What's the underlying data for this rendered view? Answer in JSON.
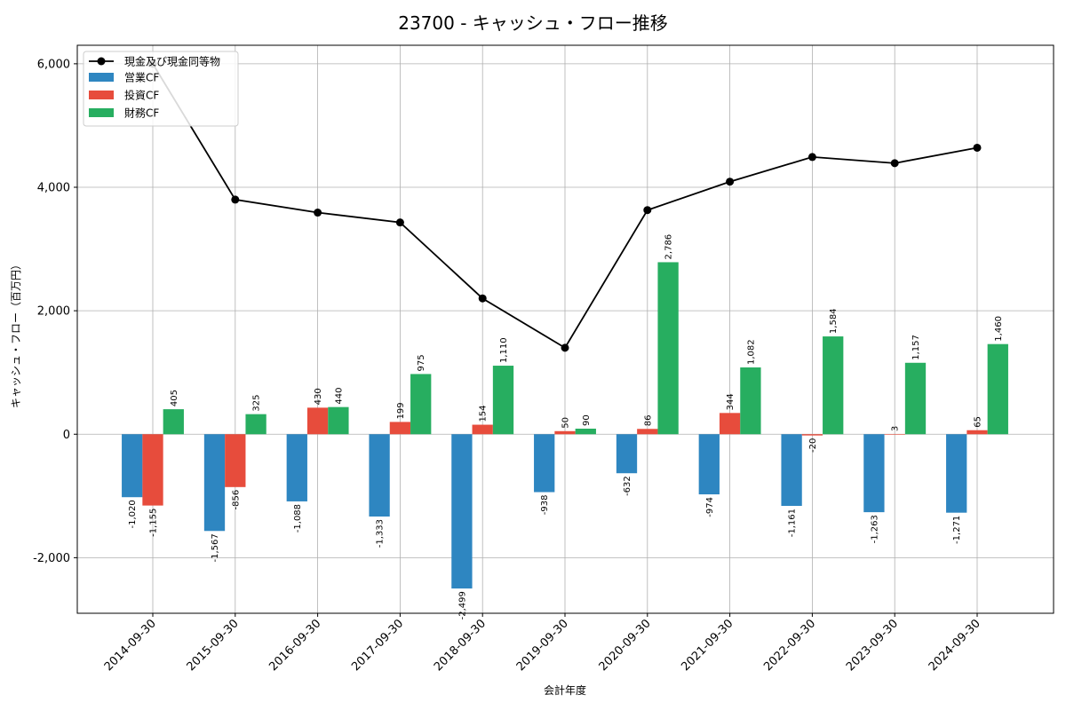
{
  "chart_data": {
    "type": "bar",
    "title": "23700 - キャッシュ・フロー推移",
    "xlabel": "会計年度",
    "ylabel": "キャッシュ・フロー（百万円）",
    "ylim": [
      -2900,
      6300
    ],
    "yticks": [
      -2000,
      0,
      2000,
      4000,
      6000
    ],
    "ytick_labels": [
      "-2,000",
      "0",
      "2,000",
      "4,000",
      "6,000"
    ],
    "grid": true,
    "legend_position": "top-left",
    "categories": [
      "2014-09-30",
      "2015-09-30",
      "2016-09-30",
      "2017-09-30",
      "2018-09-30",
      "2019-09-30",
      "2020-09-30",
      "2021-09-30",
      "2022-09-30",
      "2023-09-30",
      "2024-09-30"
    ],
    "line_series": {
      "name": "現金及び現金同等物",
      "color": "#000000",
      "values": [
        6000,
        3800,
        3590,
        3430,
        2200,
        1400,
        3630,
        4090,
        4490,
        4390,
        4640
      ]
    },
    "series": [
      {
        "name": "営業CF",
        "color": "#2e86c1",
        "values": [
          -1020,
          -1567,
          -1088,
          -1333,
          -2499,
          -938,
          -632,
          -974,
          -1161,
          -1263,
          -1271
        ],
        "labels": [
          "-1,020",
          "-1,567",
          "-1,088",
          "-1,333",
          "-2,499",
          "-938",
          "-632",
          "-974",
          "-1,161",
          "-1,263",
          "-1,271"
        ]
      },
      {
        "name": "投資CF",
        "color": "#e74c3c",
        "values": [
          -1155,
          -856,
          430,
          199,
          154,
          50,
          86,
          344,
          -20,
          3,
          65
        ],
        "labels": [
          "-1,155",
          "-856",
          "430",
          "199",
          "154",
          "50",
          "86",
          "344",
          "-20",
          "3",
          "65"
        ]
      },
      {
        "name": "財務CF",
        "color": "#27ae60",
        "values": [
          405,
          325,
          440,
          975,
          1110,
          90,
          2786,
          1082,
          1584,
          1157,
          1460
        ],
        "labels": [
          "405",
          "325",
          "440",
          "975",
          "1,110",
          "90",
          "2,786",
          "1,082",
          "1,584",
          "1,157",
          "1,460"
        ]
      }
    ]
  }
}
